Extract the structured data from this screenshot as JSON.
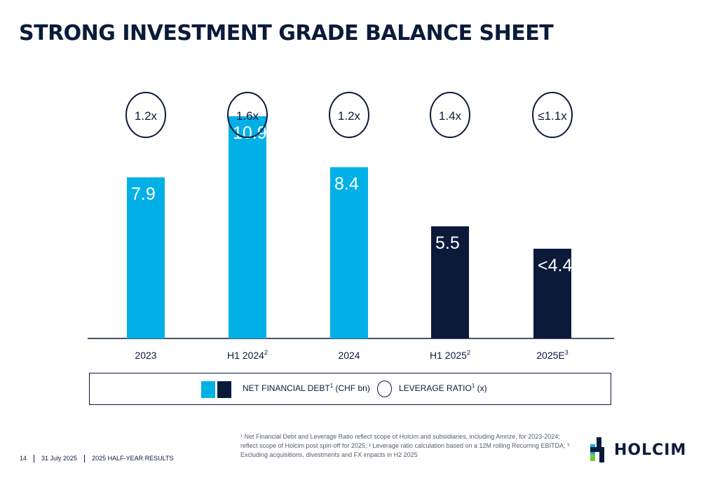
{
  "title": "STRONG INVESTMENT GRADE BALANCE SHEET",
  "colors": {
    "current": "#00b0e6",
    "future": "#0c1a3a",
    "text": "#0c1a3a"
  },
  "chart_data": {
    "type": "bar",
    "categories": [
      "2023",
      "H1 2024",
      "2024",
      "H1 2025",
      "2025E"
    ],
    "category_superscripts": [
      "",
      "2",
      "",
      "2",
      "3"
    ],
    "values": [
      7.9,
      10.9,
      8.4,
      5.5,
      4.4
    ],
    "value_labels": [
      "7.9",
      "10.9",
      "8.4",
      "5.5",
      "<4.4"
    ],
    "bar_colors": [
      "current",
      "current",
      "current",
      "future",
      "future"
    ],
    "leverage_ratios": [
      "1.2x",
      "1.6x",
      "1.2x",
      "1.4x",
      "≤1.1x"
    ],
    "ylim": [
      0,
      12
    ],
    "legend": [
      {
        "label": "NET FINANCIAL DEBT",
        "sup": "1",
        "suffix": " (CHF bn)"
      },
      {
        "label": "LEVERAGE RATIO",
        "sup": "1",
        "suffix": " (x)"
      }
    ]
  },
  "footnote": "¹ Net Financial Debt and Leverage Ratio reflect scope of Holcim and subsidiaries, including Amrize, for 2023-2024; reflect scope of Holcim post spin-off for 2025; ² Leverage ratio calculation based on a 12M rolling Recurring EBITDA; ³ Excluding acquisitions, divestments and FX impacts in H2 2025",
  "footer": {
    "page": "14",
    "date": "31 July 2025",
    "label": "2025 HALF-YEAR RESULTS"
  },
  "logo": {
    "text": "HOLCIM"
  }
}
